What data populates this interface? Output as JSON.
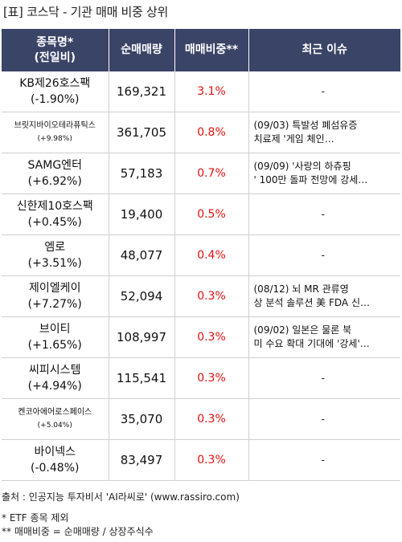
{
  "title": "[표] 코스닥 - 기관 매매 비중 상위",
  "headers": {
    "name_line1": "종목명*",
    "name_line2": "(전일비)",
    "volume": "순매매량",
    "ratio": "매매비중**",
    "issue": "최근 이슈"
  },
  "rows": [
    {
      "name": "KB제26호스팩",
      "change": "(-1.90%)",
      "volume": "169,321",
      "ratio": "3.1%",
      "issue_line1": "-",
      "issue_line2": ""
    },
    {
      "name": "브릿지바이오테라퓨틱스",
      "change": "(+9.98%)",
      "volume": "361,705",
      "ratio": "0.8%",
      "issue_line1": "(09/03) 특발성 폐섬유증",
      "issue_line2": "치료제 '게임 체인…"
    },
    {
      "name": "SAMG엔터",
      "change": "(+6.92%)",
      "volume": "57,183",
      "ratio": "0.7%",
      "issue_line1": "(09/09) '사랑의 하츄핑",
      "issue_line2": "' 100만 돌파 전망에 강세…"
    },
    {
      "name": "신한제10호스팩",
      "change": "(+0.45%)",
      "volume": "19,400",
      "ratio": "0.5%",
      "issue_line1": "-",
      "issue_line2": ""
    },
    {
      "name": "엠로",
      "change": "(+3.51%)",
      "volume": "48,077",
      "ratio": "0.4%",
      "issue_line1": "-",
      "issue_line2": ""
    },
    {
      "name": "제이엘케이",
      "change": "(+7.27%)",
      "volume": "52,094",
      "ratio": "0.3%",
      "issue_line1": "(08/12) 뇌 MR 관류영",
      "issue_line2": "상 분석 솔루션 美 FDA 신…"
    },
    {
      "name": "브이티",
      "change": "(+1.65%)",
      "volume": "108,997",
      "ratio": "0.3%",
      "issue_line1": "(09/02) 일본은 물론 북",
      "issue_line2": "미 수요 확대 기대에 '강세'…"
    },
    {
      "name": "씨피시스템",
      "change": "(+4.94%)",
      "volume": "115,541",
      "ratio": "0.3%",
      "issue_line1": "-",
      "issue_line2": ""
    },
    {
      "name": "켄코아에어로스페이스",
      "change": "(+5.04%)",
      "volume": "35,070",
      "ratio": "0.3%",
      "issue_line1": "-",
      "issue_line2": ""
    },
    {
      "name": "바이넥스",
      "change": "(-0.48%)",
      "volume": "83,497",
      "ratio": "0.3%",
      "issue_line1": "-",
      "issue_line2": ""
    }
  ],
  "footer": {
    "source": "출처 : 인공지능 투자비서 'AI라씨로' (www.rassiro.com)",
    "note1": "* ETF 종목 제외",
    "note2": "** 매매비중 = 순매매량 / 상장주식수"
  },
  "colors": {
    "header_bg": "#3a4466",
    "ratio_text": "#e0120f"
  }
}
